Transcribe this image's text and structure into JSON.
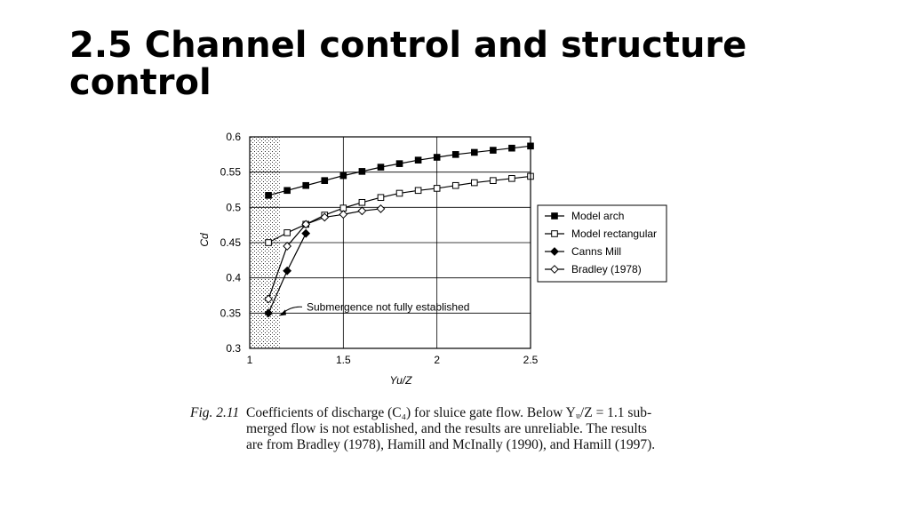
{
  "slide": {
    "title": "2.5 Channel control and structure control"
  },
  "caption": {
    "label": "Fig. 2.11",
    "lines": [
      "Coefficients of discharge (C₄) for sluice gate flow. Below Yᵤ/Z = 1.1 sub-",
      "merged flow is not established, and the results are unreliable. The results",
      "are from Bradley (1978), Hamill and McInally (1990), and Hamill (1997)."
    ]
  },
  "chart_data": {
    "type": "line",
    "xlabel": "Yu/Z",
    "ylabel": "Cd",
    "xlim": [
      1,
      2.5
    ],
    "ylim": [
      0.3,
      0.6
    ],
    "xticks": [
      "1",
      "1.5",
      "2",
      "2.5"
    ],
    "yticks": [
      "0.3",
      "0.35",
      "0.4",
      "0.45",
      "0.5",
      "0.55",
      "0.6"
    ],
    "grid": true,
    "legend_position": "right",
    "shaded_region": {
      "x": [
        1,
        1.16
      ],
      "pattern": "stipple"
    },
    "annotation": "Submergence not fully established",
    "series": [
      {
        "name": "Model arch",
        "marker": "square-filled",
        "x": [
          1.1,
          1.2,
          1.3,
          1.4,
          1.5,
          1.6,
          1.7,
          1.8,
          1.9,
          2.0,
          2.1,
          2.2,
          2.3,
          2.4,
          2.5
        ],
        "y": [
          0.517,
          0.524,
          0.531,
          0.538,
          0.545,
          0.551,
          0.557,
          0.562,
          0.567,
          0.571,
          0.575,
          0.578,
          0.581,
          0.584,
          0.587
        ]
      },
      {
        "name": "Model rectangular",
        "marker": "square-open",
        "x": [
          1.1,
          1.2,
          1.3,
          1.4,
          1.5,
          1.6,
          1.7,
          1.8,
          1.9,
          2.0,
          2.1,
          2.2,
          2.3,
          2.4,
          2.5
        ],
        "y": [
          0.45,
          0.464,
          0.476,
          0.489,
          0.499,
          0.507,
          0.514,
          0.52,
          0.524,
          0.527,
          0.531,
          0.535,
          0.538,
          0.541,
          0.544
        ]
      },
      {
        "name": "Canns Mill",
        "marker": "diamond-filled",
        "x": [
          1.1,
          1.2,
          1.3
        ],
        "y": [
          0.35,
          0.41,
          0.463
        ]
      },
      {
        "name": "Bradley (1978)",
        "marker": "diamond-open",
        "x": [
          1.1,
          1.2,
          1.3,
          1.4,
          1.5,
          1.6,
          1.7
        ],
        "y": [
          0.37,
          0.445,
          0.476,
          0.486,
          0.49,
          0.495,
          0.498
        ]
      }
    ]
  }
}
